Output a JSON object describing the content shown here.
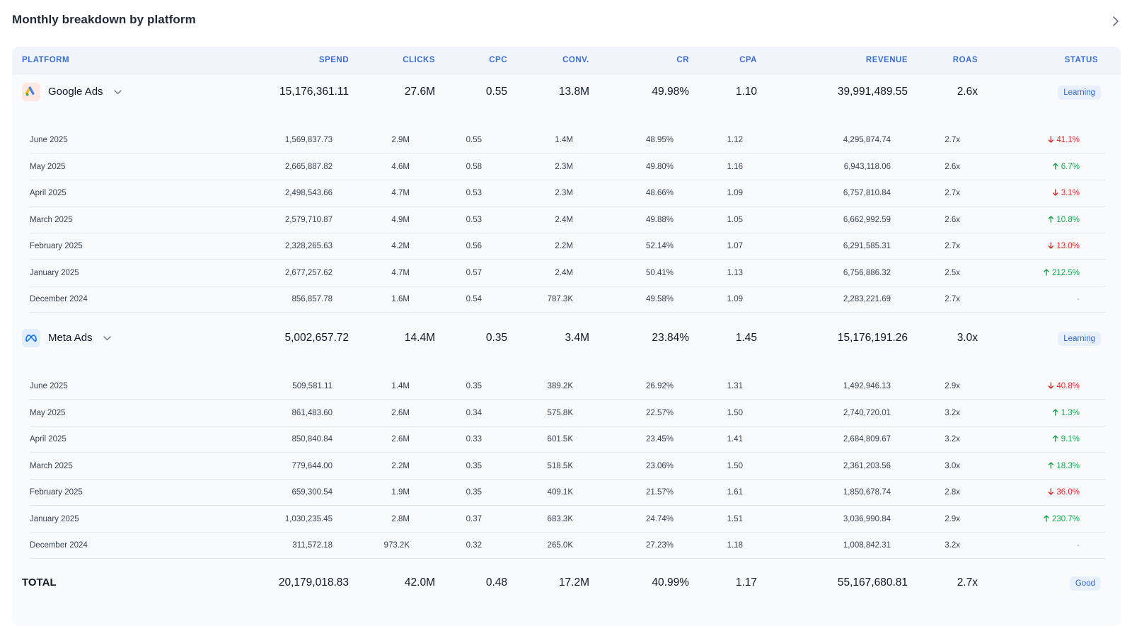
{
  "title": "Monthly breakdown by platform",
  "columns": [
    "PLATFORM",
    "SPEND",
    "CLICKS",
    "CPC",
    "CONV.",
    "CR",
    "CPA",
    "REVENUE",
    "ROAS",
    "STATUS"
  ],
  "colors": {
    "accent": "#3b6fd1",
    "up": "#16a34a",
    "down": "#dc2626",
    "badge_bg": "#e8f0fb"
  },
  "platforms": [
    {
      "name": "Google Ads",
      "icon": "google-ads-icon",
      "summary": [
        "15,176,361.11",
        "27.6M",
        "0.55",
        "13.8M",
        "49.98%",
        "1.10",
        "39,991,489.55",
        "2.6x"
      ],
      "status": "Learning",
      "months": [
        {
          "month": "June 2025",
          "values": [
            "1,569,837.73",
            "2.9M",
            "0.55",
            "1.4M",
            "48.95%",
            "1.12",
            "4,295,874.74",
            "2.7x"
          ],
          "delta": "41.1%",
          "dir": "down"
        },
        {
          "month": "May 2025",
          "values": [
            "2,665,887.82",
            "4.6M",
            "0.58",
            "2.3M",
            "49.80%",
            "1.16",
            "6,943,118.06",
            "2.6x"
          ],
          "delta": "6.7%",
          "dir": "up"
        },
        {
          "month": "April 2025",
          "values": [
            "2,498,543.66",
            "4.7M",
            "0.53",
            "2.3M",
            "48.66%",
            "1.09",
            "6,757,810.84",
            "2.7x"
          ],
          "delta": "3.1%",
          "dir": "down"
        },
        {
          "month": "March 2025",
          "values": [
            "2,579,710.87",
            "4.9M",
            "0.53",
            "2.4M",
            "49.88%",
            "1.05",
            "6,662,992.59",
            "2.6x"
          ],
          "delta": "10.8%",
          "dir": "up"
        },
        {
          "month": "February 2025",
          "values": [
            "2,328,265.63",
            "4.2M",
            "0.56",
            "2.2M",
            "52.14%",
            "1.07",
            "6,291,585.31",
            "2.7x"
          ],
          "delta": "13.0%",
          "dir": "down"
        },
        {
          "month": "January 2025",
          "values": [
            "2,677,257.62",
            "4.7M",
            "0.57",
            "2.4M",
            "50.41%",
            "1.13",
            "6,756,886.32",
            "2.5x"
          ],
          "delta": "212.5%",
          "dir": "up"
        },
        {
          "month": "December 2024",
          "values": [
            "856,857.78",
            "1.6M",
            "0.54",
            "787.3K",
            "49.58%",
            "1.09",
            "2,283,221.69",
            "2.7x"
          ],
          "delta": "-",
          "dir": "none"
        }
      ]
    },
    {
      "name": "Meta Ads",
      "icon": "meta-ads-icon",
      "summary": [
        "5,002,657.72",
        "14.4M",
        "0.35",
        "3.4M",
        "23.84%",
        "1.45",
        "15,176,191.26",
        "3.0x"
      ],
      "status": "Learning",
      "months": [
        {
          "month": "June 2025",
          "values": [
            "509,581.11",
            "1.4M",
            "0.35",
            "389.2K",
            "26.92%",
            "1.31",
            "1,492,946.13",
            "2.9x"
          ],
          "delta": "40.8%",
          "dir": "down"
        },
        {
          "month": "May 2025",
          "values": [
            "861,483.60",
            "2.6M",
            "0.34",
            "575.8K",
            "22.57%",
            "1.50",
            "2,740,720.01",
            "3.2x"
          ],
          "delta": "1.3%",
          "dir": "up"
        },
        {
          "month": "April 2025",
          "values": [
            "850,840.84",
            "2.6M",
            "0.33",
            "601.5K",
            "23.45%",
            "1.41",
            "2,684,809.67",
            "3.2x"
          ],
          "delta": "9.1%",
          "dir": "up"
        },
        {
          "month": "March 2025",
          "values": [
            "779,644.00",
            "2.2M",
            "0.35",
            "518.5K",
            "23.06%",
            "1.50",
            "2,361,203.56",
            "3.0x"
          ],
          "delta": "18.3%",
          "dir": "up"
        },
        {
          "month": "February 2025",
          "values": [
            "659,300.54",
            "1.9M",
            "0.35",
            "409.1K",
            "21.57%",
            "1.61",
            "1,850,678.74",
            "2.8x"
          ],
          "delta": "36.0%",
          "dir": "down"
        },
        {
          "month": "January 2025",
          "values": [
            "1,030,235.45",
            "2.8M",
            "0.37",
            "683.3K",
            "24.74%",
            "1.51",
            "3,036,990.84",
            "2.9x"
          ],
          "delta": "230.7%",
          "dir": "up"
        },
        {
          "month": "December 2024",
          "values": [
            "311,572.18",
            "973.2K",
            "0.32",
            "265.0K",
            "27.23%",
            "1.18",
            "1,008,842.31",
            "3.2x"
          ],
          "delta": "-",
          "dir": "none"
        }
      ]
    }
  ],
  "total": {
    "label": "TOTAL",
    "values": [
      "20,179,018.83",
      "42.0M",
      "0.48",
      "17.2M",
      "40.99%",
      "1.17",
      "55,167,680.81",
      "2.7x"
    ],
    "status": "Good"
  }
}
